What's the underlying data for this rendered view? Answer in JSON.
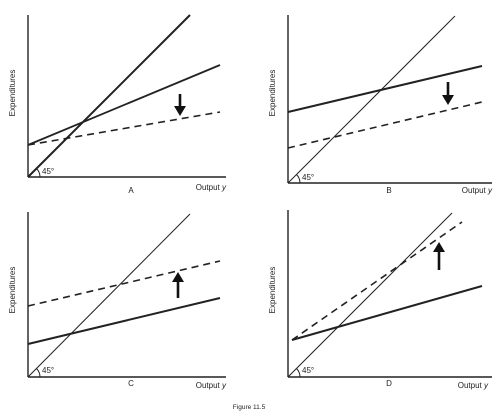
{
  "figure_caption": "Figure 11.5",
  "panels": [
    {
      "label": "A",
      "ylabel": "Expenditures",
      "xlabel_text": "Output ",
      "xlabel_var": "y",
      "angle_label": "45°",
      "arrow_direction": "down"
    },
    {
      "label": "B",
      "ylabel": "Expenditures",
      "xlabel_text": "Output ",
      "xlabel_var": "y",
      "angle_label": "45°",
      "arrow_direction": "down"
    },
    {
      "label": "C",
      "ylabel": "Expenditures",
      "xlabel_text": "Output ",
      "xlabel_var": "y",
      "angle_label": "45°",
      "arrow_direction": "up"
    },
    {
      "label": "D",
      "ylabel": "Expenditures",
      "xlabel_text": "Output ",
      "xlabel_var": "y",
      "angle_label": "45°",
      "arrow_direction": "up"
    }
  ]
}
